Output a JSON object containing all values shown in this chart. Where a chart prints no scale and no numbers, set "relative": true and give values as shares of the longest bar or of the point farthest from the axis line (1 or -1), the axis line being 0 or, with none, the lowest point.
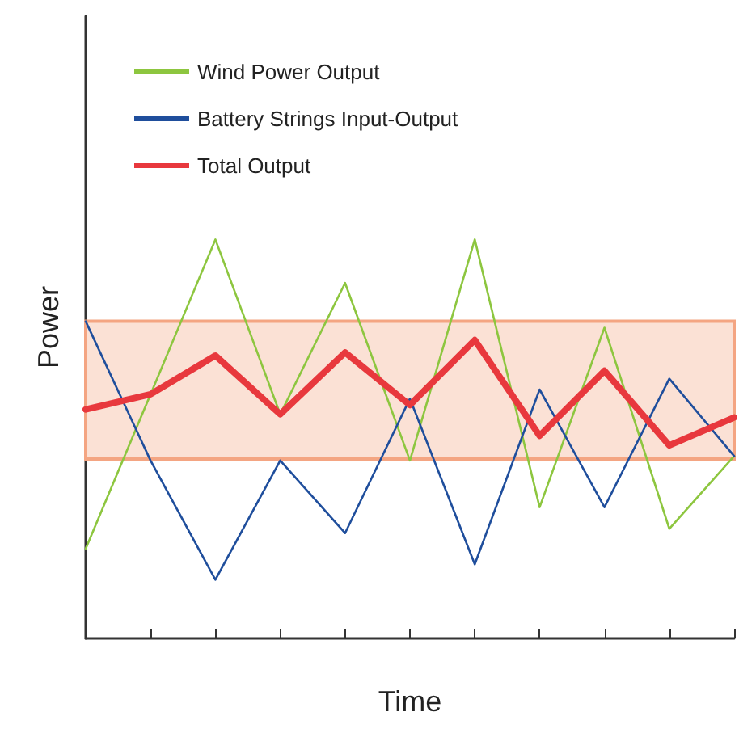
{
  "chart_data": {
    "type": "line",
    "relative": true,
    "xlabel": "Time",
    "ylabel": "Power",
    "categories": [
      null,
      null,
      null,
      null,
      null,
      null,
      null,
      null,
      null,
      null,
      null
    ],
    "series": [
      {
        "name": "Wind Power Output",
        "color": "#8dc63f",
        "values": [
          0.225,
          0.612,
          1,
          0.562,
          0.891,
          0.446,
          1,
          0.329,
          0.779,
          0.275,
          0.457
        ]
      },
      {
        "name": "Battery Strings Input-Output",
        "color": "#1f4e9c",
        "values": [
          0.795,
          0.446,
          0.147,
          0.446,
          0.264,
          0.601,
          0.186,
          0.624,
          0.329,
          0.651,
          0.457
        ]
      },
      {
        "name": "Total Output",
        "color": "#e8383d",
        "values": [
          0.574,
          0.612,
          0.709,
          0.562,
          0.717,
          0.585,
          0.748,
          0.508,
          0.671,
          0.484,
          0.554
        ]
      }
    ],
    "bands": [
      {
        "axis": "y",
        "from": 0.45,
        "to": 0.795,
        "color": "#f4a582"
      }
    ],
    "legend": "top left",
    "grid": false,
    "marker": "none",
    "line_style": "solid"
  }
}
